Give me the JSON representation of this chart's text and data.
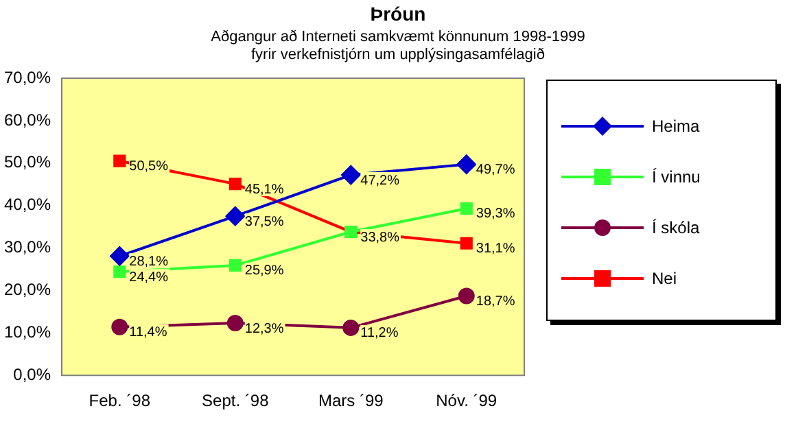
{
  "chart_data": {
    "type": "line",
    "title": "Þróun",
    "subtitle": "Aðgangur að Interneti samkvæmt könnunum 1998-1999 fyrir verkefnistjórn um upplýsingasamfélagið",
    "categories": [
      "Feb. ´98",
      "Sept. ´98",
      "Mars ´99",
      "Nóv. ´99"
    ],
    "series": [
      {
        "name": "Heima",
        "color": "#0000cc",
        "marker": "diamond",
        "values": [
          28.1,
          37.5,
          47.2,
          49.7
        ],
        "value_labels": [
          "28,1%",
          "37,5%",
          "47,2%",
          "49,7%"
        ]
      },
      {
        "name": "Í vinnu",
        "color": "#33ff33",
        "marker": "square",
        "values": [
          24.4,
          25.9,
          33.8,
          39.3
        ],
        "value_labels": [
          "24,4%",
          "25,9%",
          null,
          "39,3%"
        ]
      },
      {
        "name": "Í skóla",
        "color": "#800040",
        "marker": "circle",
        "values": [
          11.4,
          12.3,
          11.2,
          18.7
        ],
        "value_labels": [
          "11,4%",
          "12,3%",
          "11,2%",
          "18,7%"
        ]
      },
      {
        "name": "Nei",
        "color": "#ff0000",
        "marker": "square",
        "values": [
          50.5,
          45.1,
          33.8,
          31.1
        ],
        "value_labels": [
          "50,5%",
          "45,1%",
          "33,8%",
          "31,1%"
        ]
      }
    ],
    "ylim": [
      0,
      70
    ],
    "yticks": [
      {
        "value": 0,
        "label": "0,0%"
      },
      {
        "value": 10,
        "label": "10,0%"
      },
      {
        "value": 20,
        "label": "20,0%"
      },
      {
        "value": 30,
        "label": "30,0%"
      },
      {
        "value": 40,
        "label": "40,0%"
      },
      {
        "value": 50,
        "label": "50,0%"
      },
      {
        "value": 60,
        "label": "60,0%"
      },
      {
        "value": 70,
        "label": "70,0%"
      }
    ],
    "grid": false,
    "legend": "right",
    "line_style": "solid"
  }
}
